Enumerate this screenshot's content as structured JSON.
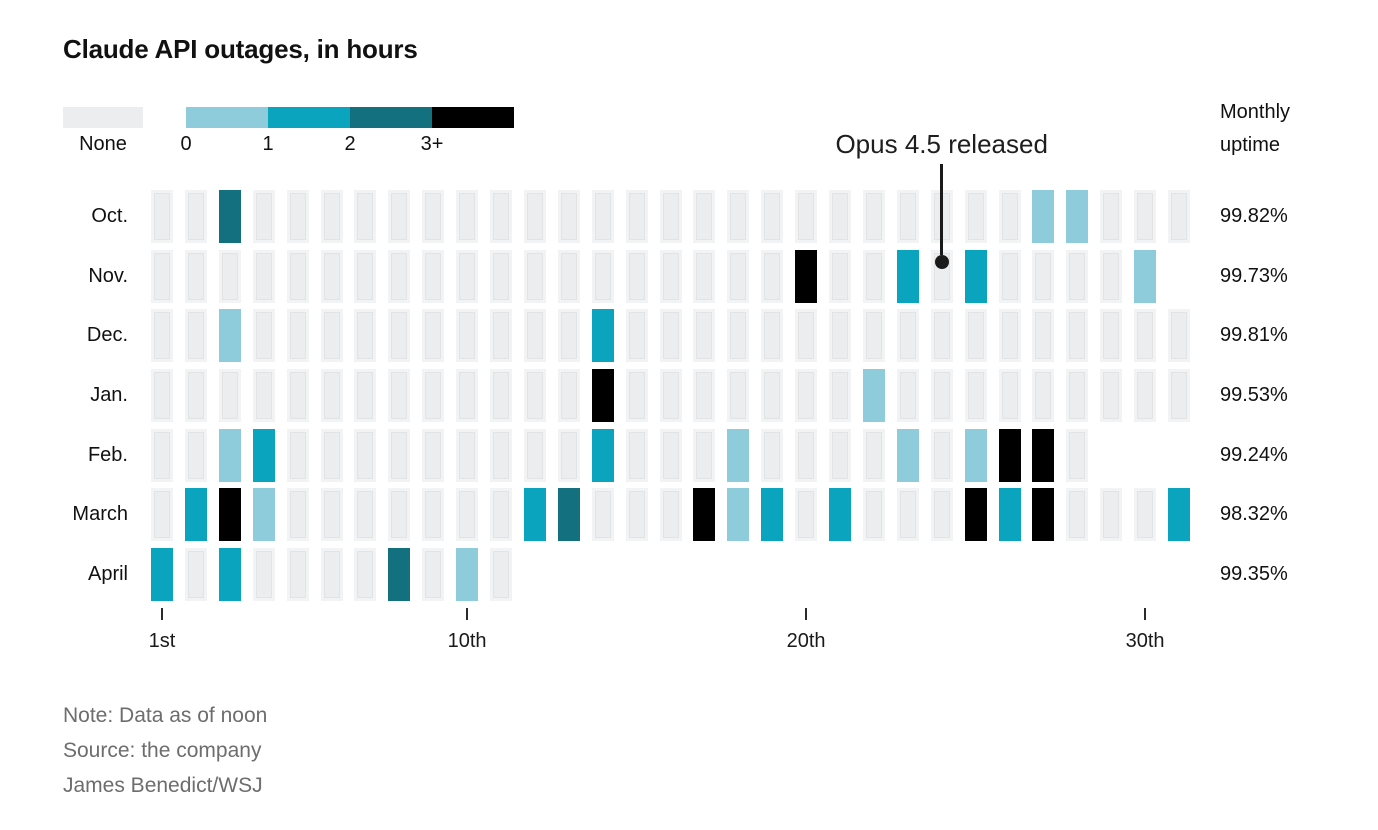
{
  "title": "Claude API outages, in hours",
  "legend": {
    "none_label": "None",
    "none_color": "#ebedee",
    "levels": [
      {
        "label": "0",
        "color": "#8ecbdb"
      },
      {
        "label": "1",
        "color": "#0ba4bf"
      },
      {
        "label": "2",
        "color": "#13707f"
      },
      {
        "label": "3+",
        "color": "#000000"
      }
    ]
  },
  "uptime_header": {
    "line1": "Monthly",
    "line2": "uptime"
  },
  "annotation": {
    "label": "Opus 4.5 released",
    "target_month": "Nov.",
    "target_day": 24
  },
  "x_axis": {
    "ticks": [
      {
        "day": 1,
        "label": "1st"
      },
      {
        "day": 10,
        "label": "10th"
      },
      {
        "day": 20,
        "label": "20th"
      },
      {
        "day": 30,
        "label": "30th"
      }
    ]
  },
  "notes": {
    "line1": "Note: Data as of noon",
    "line2": "Source: the company",
    "line3": "James Benedict/WSJ"
  },
  "chart_data": {
    "type": "heatmap",
    "title": "Claude API outages, in hours",
    "x_unit": "day of month",
    "value_buckets": [
      "none",
      "0",
      "1",
      "2",
      "3+"
    ],
    "legend_position": "top-left",
    "rows": [
      {
        "month": "Oct.",
        "uptime": "99.82%",
        "num_days": 31,
        "outage_days": {
          "3": "2",
          "27": "0",
          "28": "0"
        }
      },
      {
        "month": "Nov.",
        "uptime": "99.73%",
        "num_days": 30,
        "outage_days": {
          "20": "3+",
          "23": "1",
          "25": "1",
          "30": "0"
        }
      },
      {
        "month": "Dec.",
        "uptime": "99.81%",
        "num_days": 31,
        "outage_days": {
          "3": "0",
          "14": "1"
        }
      },
      {
        "month": "Jan.",
        "uptime": "99.53%",
        "num_days": 31,
        "outage_days": {
          "14": "3+",
          "22": "0"
        }
      },
      {
        "month": "Feb.",
        "uptime": "99.24%",
        "num_days": 28,
        "outage_days": {
          "3": "0",
          "4": "1",
          "14": "1",
          "18": "0",
          "23": "0",
          "25": "0",
          "26": "3+",
          "27": "3+"
        }
      },
      {
        "month": "March",
        "uptime": "98.32%",
        "num_days": 31,
        "outage_days": {
          "2": "1",
          "3": "3+",
          "4": "0",
          "12": "1",
          "13": "2",
          "17": "3+",
          "18": "0",
          "19": "1",
          "21": "1",
          "25": "3+",
          "26": "1",
          "27": "3+",
          "31": "1"
        }
      },
      {
        "month": "April",
        "uptime": "99.35%",
        "num_days": 11,
        "outage_days": {
          "1": "1",
          "3": "1",
          "8": "2",
          "10": "0"
        }
      }
    ]
  }
}
